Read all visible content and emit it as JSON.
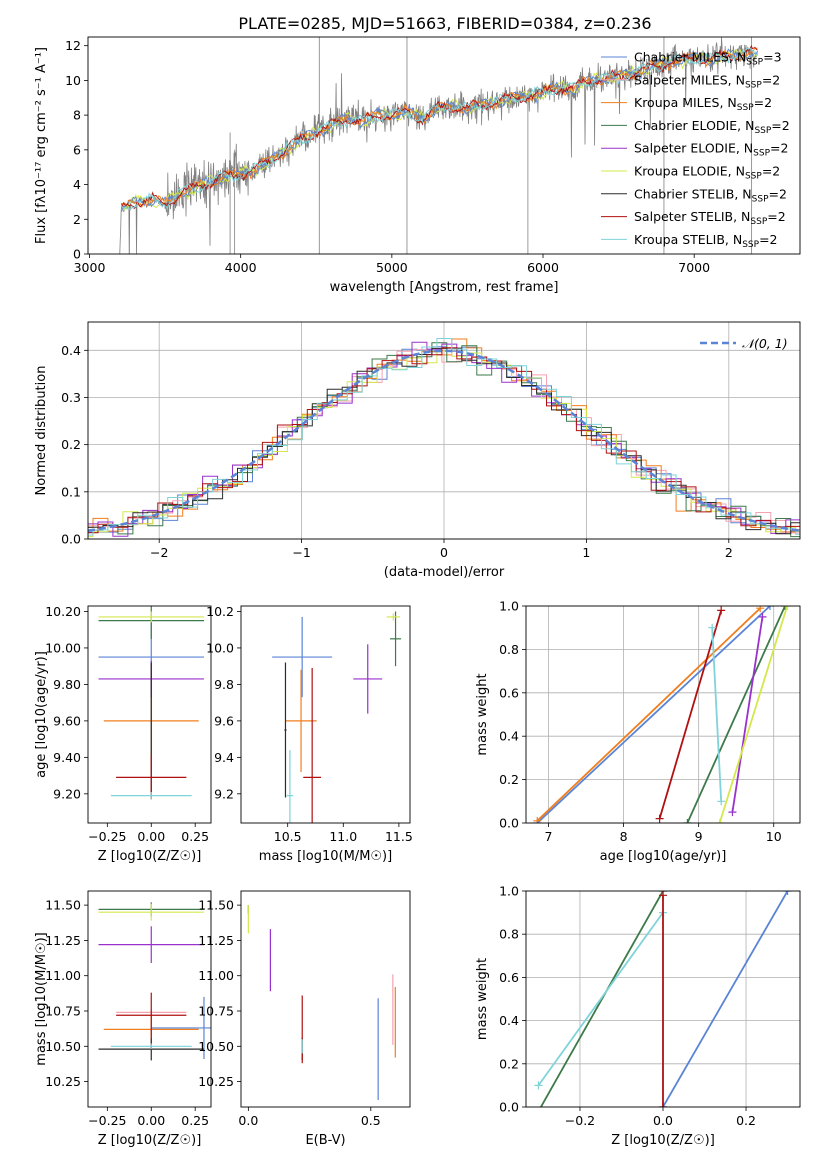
{
  "figure_title": "PLATE=0285, MJD=51663, FIBERID=0384, z=0.236",
  "colors": {
    "Chabrier MILES": "#5b84d6",
    "Salpeter MILES": "#f4a3b0",
    "Kroupa MILES": "#f07e1e",
    "Chabrier ELODIE": "#3d7a4a",
    "Salpeter ELODIE": "#9932cc",
    "Kroupa ELODIE": "#d4e84c",
    "Chabrier STELIB": "#2b2b2b",
    "Salpeter STELIB": "#b01010",
    "Kroupa STELIB": "#7fd3d9",
    "data": "#808080"
  },
  "chart_data": [
    {
      "id": "spectrum",
      "type": "line",
      "xlabel": "wavelength [Angstrom, rest frame]",
      "ylabel": "Flux [fλ10⁻¹⁷ erg cm⁻² s⁻¹ A⁻¹]",
      "xlim": [
        2990,
        7700
      ],
      "ylim": [
        0,
        12.5
      ],
      "xticks": [
        3000,
        4000,
        5000,
        6000,
        7000
      ],
      "yticks": [
        0,
        2,
        4,
        6,
        8,
        10,
        12
      ],
      "legend_position": "top-right",
      "legend": [
        "Chabrier MILES, N_SSP=3",
        "Salpeter MILES, N_SSP=2",
        "Kroupa MILES, N_SSP=2",
        "Chabrier ELODIE, N_SSP=2",
        "Salpeter ELODIE, N_SSP=2",
        "Kroupa ELODIE, N_SSP=2",
        "Chabrier STELIB, N_SSP=2",
        "Salpeter STELIB, N_SSP=2",
        "Kroupa STELIB, N_SSP=2"
      ],
      "continuum": [
        [
          3200,
          0
        ],
        [
          3210,
          2.6
        ],
        [
          3300,
          3.0
        ],
        [
          3400,
          3.1
        ],
        [
          3500,
          2.9
        ],
        [
          3600,
          3.5
        ],
        [
          3700,
          3.8
        ],
        [
          3800,
          4.2
        ],
        [
          3900,
          4.5
        ],
        [
          4000,
          4.6
        ],
        [
          4100,
          4.9
        ],
        [
          4200,
          5.4
        ],
        [
          4300,
          6.0
        ],
        [
          4400,
          6.6
        ],
        [
          4500,
          7.0
        ],
        [
          4600,
          7.4
        ],
        [
          4700,
          7.8
        ],
        [
          4800,
          7.6
        ],
        [
          4900,
          8.0
        ],
        [
          5000,
          8.0
        ],
        [
          5100,
          8.2
        ],
        [
          5200,
          7.8
        ],
        [
          5300,
          8.4
        ],
        [
          5400,
          8.5
        ],
        [
          5500,
          8.4
        ],
        [
          5600,
          8.6
        ],
        [
          5700,
          8.8
        ],
        [
          5800,
          9.0
        ],
        [
          5900,
          9.1
        ],
        [
          6000,
          9.3
        ],
        [
          6100,
          9.6
        ],
        [
          6200,
          9.5
        ],
        [
          6300,
          10.0
        ],
        [
          6400,
          10.1
        ],
        [
          6500,
          10.2
        ],
        [
          6600,
          10.4
        ],
        [
          6700,
          10.7
        ],
        [
          6800,
          11.0
        ],
        [
          6900,
          11.1
        ],
        [
          7000,
          11.3
        ],
        [
          7100,
          11.2
        ],
        [
          7200,
          11.4
        ],
        [
          7300,
          11.5
        ],
        [
          7400,
          11.6
        ]
      ]
    },
    {
      "id": "residuals",
      "type": "line",
      "xlabel": "(data-model)/error",
      "ylabel": "Normed distribution",
      "xlim": [
        -2.5,
        2.5
      ],
      "ylim": [
        0,
        0.46
      ],
      "xticks": [
        -2,
        -1,
        0,
        1,
        2
      ],
      "yticks": [
        0.0,
        0.1,
        0.2,
        0.3,
        0.4
      ],
      "legend": [
        "𝒩(0, 1)"
      ],
      "legend_position": "top-right",
      "grid": true
    },
    {
      "id": "age_vs_Z",
      "type": "scatter",
      "xlabel": "Z [log10(Z/Z☉)]",
      "ylabel": "age  [log10(age/yr)]",
      "xlim": [
        -0.36,
        0.34
      ],
      "ylim": [
        9.04,
        10.23
      ],
      "xticks": [
        -0.25,
        0.0,
        0.25
      ],
      "yticks": [
        9.2,
        9.4,
        9.6,
        9.8,
        10.0,
        10.2
      ],
      "series": [
        {
          "name": "Chabrier MILES",
          "x": 0.0,
          "y": 9.95,
          "xerr": 0.3,
          "yerr": 0.2
        },
        {
          "name": "Kroupa MILES",
          "x": 0.0,
          "y": 9.6,
          "xerr": 0.27,
          "yerr": 0.28
        },
        {
          "name": "Chabrier ELODIE",
          "x": 0.0,
          "y": 10.15,
          "xerr": 0.3,
          "yerr": 0.1
        },
        {
          "name": "Salpeter ELODIE",
          "x": 0.0,
          "y": 9.83,
          "xerr": 0.3,
          "yerr": 0.1
        },
        {
          "name": "Kroupa ELODIE",
          "x": 0.0,
          "y": 10.17,
          "xerr": 0.3,
          "yerr": 0.03
        },
        {
          "name": "Chabrier STELIB",
          "x": 0.0,
          "y": 9.55,
          "xerr": 0.0,
          "yerr": 0.37
        },
        {
          "name": "Salpeter STELIB",
          "x": 0.0,
          "y": 9.29,
          "xerr": 0.2,
          "yerr": 0.12
        },
        {
          "name": "Kroupa STELIB",
          "x": 0.0,
          "y": 9.19,
          "xerr": 0.23,
          "yerr": 0.02
        }
      ]
    },
    {
      "id": "age_vs_mass",
      "type": "scatter",
      "xlabel": "mass [log10(M/M☉)]",
      "ylabel": "",
      "xlim": [
        10.08,
        11.6
      ],
      "ylim": [
        9.04,
        10.23
      ],
      "xticks": [
        10.5,
        11.0,
        11.5
      ],
      "yticks": [
        9.2,
        9.4,
        9.6,
        9.8,
        10.0,
        10.2
      ],
      "series": [
        {
          "name": "Chabrier MILES",
          "x": 10.63,
          "y": 9.95,
          "xerr": 0.27,
          "yerr": 0.22
        },
        {
          "name": "Kroupa MILES",
          "x": 10.62,
          "y": 9.6,
          "xerr": 0.14,
          "yerr": 0.28
        },
        {
          "name": "Chabrier ELODIE",
          "x": 11.47,
          "y": 10.05,
          "xerr": 0.05,
          "yerr": 0.15
        },
        {
          "name": "Salpeter ELODIE",
          "x": 11.22,
          "y": 9.83,
          "xerr": 0.13,
          "yerr": 0.19
        },
        {
          "name": "Kroupa ELODIE",
          "x": 11.45,
          "y": 10.17,
          "xerr": 0.06,
          "yerr": 0.02
        },
        {
          "name": "Chabrier STELIB",
          "x": 10.48,
          "y": 9.55,
          "xerr": 0.01,
          "yerr": 0.37
        },
        {
          "name": "Salpeter STELIB",
          "x": 10.72,
          "y": 9.29,
          "xerr": 0.08,
          "yerr": 0.6
        },
        {
          "name": "Kroupa STELIB",
          "x": 10.52,
          "y": 9.19,
          "xerr": 0.03,
          "yerr": 0.25
        }
      ]
    },
    {
      "id": "mass_weight_vs_age",
      "type": "line",
      "xlabel": "age  [log10(age/yr)]",
      "ylabel": "mass weight",
      "xlim": [
        6.7,
        10.35
      ],
      "ylim": [
        0,
        1
      ],
      "xticks": [
        7,
        8,
        9,
        10
      ],
      "yticks": [
        0.0,
        0.2,
        0.4,
        0.6,
        0.8,
        1.0
      ],
      "grid": true,
      "series": [
        {
          "name": "Chabrier MILES",
          "x": [
            6.85,
            9.95
          ],
          "y": [
            0.0,
            1.0
          ]
        },
        {
          "name": "Kroupa MILES",
          "x": [
            6.85,
            9.82
          ],
          "y": [
            0.01,
            0.99
          ]
        },
        {
          "name": "Chabrier ELODIE",
          "x": [
            8.85,
            10.15
          ],
          "y": [
            0.0,
            1.0
          ]
        },
        {
          "name": "Salpeter ELODIE",
          "x": [
            9.45,
            9.85
          ],
          "y": [
            0.05,
            0.95
          ]
        },
        {
          "name": "Kroupa ELODIE",
          "x": [
            9.28,
            10.18
          ],
          "y": [
            0.0,
            1.0
          ]
        },
        {
          "name": "Salpeter STELIB",
          "x": [
            8.48,
            9.3
          ],
          "y": [
            0.02,
            0.98
          ]
        },
        {
          "name": "Kroupa STELIB",
          "x": [
            9.18,
            9.3
          ],
          "y": [
            0.9,
            0.1
          ]
        }
      ]
    },
    {
      "id": "mass_vs_Z",
      "type": "scatter",
      "xlabel": "Z [log10(Z/Z☉)]",
      "ylabel": "mass [log10(M/M☉)]",
      "xlim": [
        -0.36,
        0.34
      ],
      "ylim": [
        10.07,
        11.6
      ],
      "xticks": [
        -0.25,
        0.0,
        0.25
      ],
      "yticks": [
        10.25,
        10.5,
        10.75,
        11.0,
        11.25,
        11.5
      ],
      "series": [
        {
          "name": "Chabrier MILES",
          "x": 0.3,
          "y": 10.63,
          "xerr": 0.3,
          "yerr": 0.22
        },
        {
          "name": "Kroupa MILES",
          "x": 0.0,
          "y": 10.62,
          "xerr": 0.27,
          "yerr": 0.14
        },
        {
          "name": "Salpeter MILES",
          "x": 0.0,
          "y": 10.74,
          "xerr": 0.2,
          "yerr": 0.02
        },
        {
          "name": "Chabrier ELODIE",
          "x": 0.0,
          "y": 11.47,
          "xerr": 0.3,
          "yerr": 0.05
        },
        {
          "name": "Salpeter ELODIE",
          "x": 0.0,
          "y": 11.22,
          "xerr": 0.3,
          "yerr": 0.13
        },
        {
          "name": "Kroupa ELODIE",
          "x": 0.0,
          "y": 11.45,
          "xerr": 0.3,
          "yerr": 0.06
        },
        {
          "name": "Chabrier STELIB",
          "x": 0.0,
          "y": 10.48,
          "xerr": 0.3,
          "yerr": 0.08
        },
        {
          "name": "Salpeter STELIB",
          "x": 0.0,
          "y": 10.72,
          "xerr": 0.2,
          "yerr": 0.16
        },
        {
          "name": "Kroupa STELIB",
          "x": 0.0,
          "y": 10.5,
          "xerr": 0.23,
          "yerr": 0.02
        }
      ]
    },
    {
      "id": "mass_vs_EBV",
      "type": "scatter",
      "xlabel": "E(B-V)",
      "ylabel": "",
      "xlim": [
        -0.03,
        0.66
      ],
      "ylim": [
        10.07,
        11.6
      ],
      "xticks": [
        0.0,
        0.5
      ],
      "yticks": [
        10.25,
        10.5,
        10.75,
        11.0,
        11.25,
        11.5
      ],
      "series": [
        {
          "name": "Chabrier MILES",
          "x": 0.53,
          "y": 10.48,
          "yerr": 0.36
        },
        {
          "name": "Kroupa MILES",
          "x": 0.6,
          "y": 10.67,
          "yerr": 0.25
        },
        {
          "name": "Salpeter MILES",
          "x": 0.59,
          "y": 10.76,
          "yerr": 0.25
        },
        {
          "name": "Chabrier ELODIE",
          "x": 0.0,
          "y": 11.47,
          "yerr": 0.03
        },
        {
          "name": "Salpeter ELODIE",
          "x": 0.09,
          "y": 11.11,
          "yerr": 0.22
        },
        {
          "name": "Kroupa ELODIE",
          "x": 0.0,
          "y": 11.4,
          "yerr": 0.1
        },
        {
          "name": "Chabrier STELIB",
          "x": 0.22,
          "y": 10.48,
          "yerr": 0.08
        },
        {
          "name": "Salpeter STELIB",
          "x": 0.22,
          "y": 10.62,
          "yerr": 0.24
        },
        {
          "name": "Kroupa STELIB",
          "x": 0.22,
          "y": 10.5,
          "yerr": 0.05
        }
      ]
    },
    {
      "id": "mass_weight_vs_Z",
      "type": "line",
      "xlabel": "Z [log10(Z/Z☉)]",
      "ylabel": "mass weight",
      "xlim": [
        -0.33,
        0.33
      ],
      "ylim": [
        0,
        1
      ],
      "xticks": [
        -0.2,
        0.0,
        0.2
      ],
      "yticks": [
        0.0,
        0.2,
        0.4,
        0.6,
        0.8,
        1.0
      ],
      "grid": true,
      "series": [
        {
          "name": "Chabrier MILES",
          "x": [
            0.0,
            0.3
          ],
          "y": [
            0.0,
            1.0
          ]
        },
        {
          "name": "Chabrier ELODIE",
          "x": [
            -0.3,
            0.0
          ],
          "y": [
            -0.02,
            1.0
          ]
        },
        {
          "name": "Kroupa STELIB",
          "x": [
            -0.3,
            0.0
          ],
          "y": [
            0.1,
            0.9
          ]
        },
        {
          "name": "Salpeter STELIB",
          "x": [
            0.0,
            0.0
          ],
          "y": [
            0.0,
            0.98
          ]
        }
      ]
    }
  ]
}
